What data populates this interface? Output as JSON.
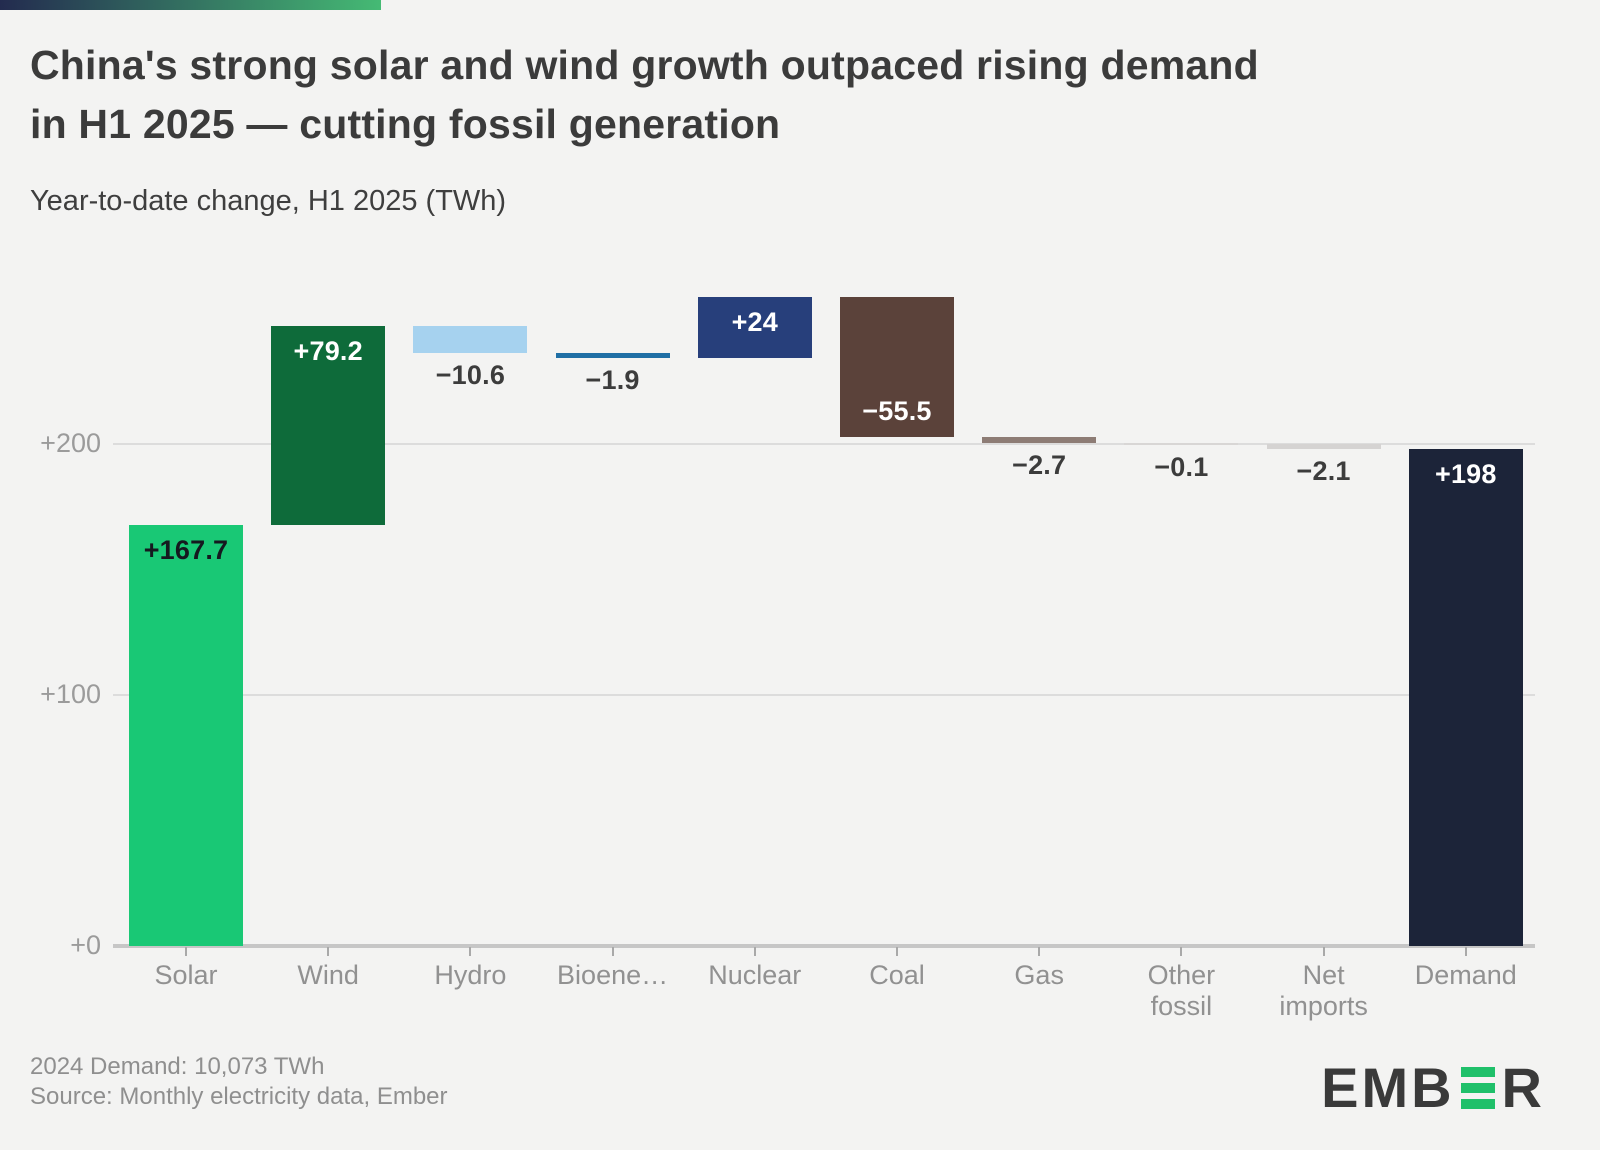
{
  "accent": {
    "gradient_from": "#232b4f",
    "gradient_to": "#45ba74"
  },
  "chart_data": {
    "type": "waterfall",
    "title_lines": [
      "China's strong solar and wind growth outpaced rising demand",
      "in H1 2025 — cutting fossil generation"
    ],
    "subtitle": "Year-to-date change, H1 2025 (TWh)",
    "categories": [
      "Solar",
      "Wind",
      "Hydro",
      "Bioenergy",
      "Nuclear",
      "Coal",
      "Gas",
      "Other fossil",
      "Net imports",
      "Demand"
    ],
    "x_tick_labels": [
      [
        "Solar"
      ],
      [
        "Wind"
      ],
      [
        "Hydro"
      ],
      [
        "Bioene…"
      ],
      [
        "Nuclear"
      ],
      [
        "Coal"
      ],
      [
        "Gas"
      ],
      [
        "Other",
        "fossil"
      ],
      [
        "Net",
        "imports"
      ],
      [
        "Demand"
      ]
    ],
    "bars": [
      {
        "category": "Solar",
        "value": 167.7,
        "label": "+167.7",
        "color": "#19c875",
        "label_placement": "inside",
        "label_color": "#15191f",
        "is_total": false
      },
      {
        "category": "Wind",
        "value": 79.2,
        "label": "+79.2",
        "color": "#0e6b3a",
        "label_placement": "inside",
        "label_color": "#ffffff",
        "is_total": false
      },
      {
        "category": "Hydro",
        "value": -10.6,
        "label": "−10.6",
        "color": "#a6d2ef",
        "label_placement": "below",
        "label_color": "#3c3c3c",
        "is_total": false
      },
      {
        "category": "Bioenergy",
        "value": -1.9,
        "label": "−1.9",
        "color": "#1f6fa5",
        "label_placement": "below",
        "label_color": "#3c3c3c",
        "is_total": false
      },
      {
        "category": "Nuclear",
        "value": 24,
        "label": "+24",
        "color": "#273f7b",
        "label_placement": "inside",
        "label_color": "#ffffff",
        "is_total": false
      },
      {
        "category": "Coal",
        "value": -55.5,
        "label": "−55.5",
        "color": "#5b423a",
        "label_placement": "inside",
        "label_color": "#ffffff",
        "is_total": false
      },
      {
        "category": "Gas",
        "value": -2.7,
        "label": "−2.7",
        "color": "#8d7c75",
        "label_placement": "below",
        "label_color": "#3c3c3c",
        "is_total": false
      },
      {
        "category": "Other fossil",
        "value": -0.1,
        "label": "−0.1",
        "color": "#d8d6d5",
        "label_placement": "below",
        "label_color": "#3c3c3c",
        "is_total": false
      },
      {
        "category": "Net imports",
        "value": -2.1,
        "label": "−2.1",
        "color": "#d5d3d2",
        "label_placement": "below",
        "label_color": "#3c3c3c",
        "is_total": false
      },
      {
        "category": "Demand",
        "value": 198,
        "label": "+198",
        "color": "#1c2439",
        "label_placement": "inside",
        "label_color": "#ffffff",
        "is_total": true
      }
    ],
    "y_axis": {
      "ticks": [
        {
          "label": "+0",
          "value": 0
        },
        {
          "label": "+100",
          "value": 100
        },
        {
          "label": "+200",
          "value": 200
        }
      ],
      "ylim": [
        0,
        266
      ],
      "grid": true
    },
    "legend_position": "none"
  },
  "footer": {
    "line1": "2024 Demand: 10,073 TWh",
    "line2": "Source: Monthly electricity data, Ember"
  },
  "logo": {
    "name": "EMBER",
    "prefix": "EMB",
    "suffix": "R",
    "green_e_color": "#1fc06a"
  }
}
